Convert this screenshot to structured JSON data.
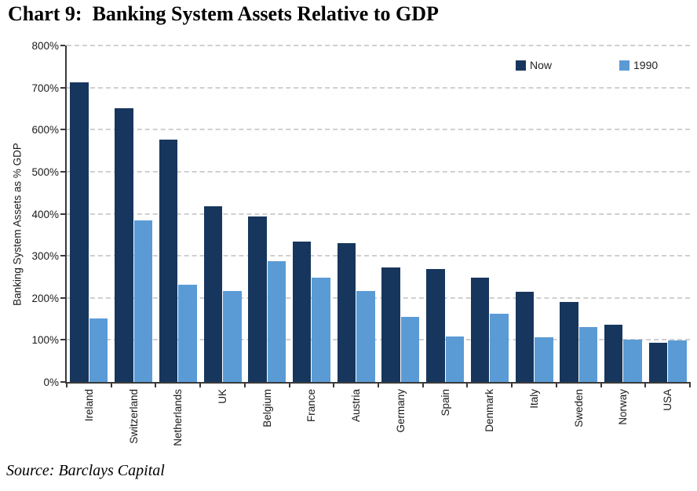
{
  "title": "Chart 9:  Banking System Assets Relative to GDP",
  "source_note": "Source: Barclays Capital",
  "colors": {
    "now_series": "#17365d",
    "series_1990": "#5b9bd5",
    "gridline": "#d0d0d0",
    "axis": "#3a3a3a",
    "text": "#1a1a1a"
  },
  "chart_data": {
    "type": "bar",
    "title": "Chart 9:  Banking System Assets Relative to GDP",
    "xlabel": "",
    "ylabel": "Banking System Assets as % GDP",
    "ylim": [
      0,
      800
    ],
    "ytick_step": 100,
    "ytick_labels": [
      "0%",
      "100%",
      "200%",
      "300%",
      "400%",
      "500%",
      "600%",
      "700%",
      "800%"
    ],
    "grid": "dashed horizontal",
    "legend_position": "top-right-inside",
    "categories": [
      "Ireland",
      "Switzerland",
      "Netherlands",
      "UK",
      "Belgium",
      "France",
      "Austria",
      "Germany",
      "Spain",
      "Denmark",
      "Italy",
      "Sweden",
      "Norway",
      "USA"
    ],
    "series": [
      {
        "name": "Now",
        "color": "#17365d",
        "values": [
          712,
          650,
          577,
          417,
          394,
          333,
          331,
          272,
          269,
          248,
          215,
          191,
          137,
          93
        ]
      },
      {
        "name": "1990",
        "color": "#5b9bd5",
        "values": [
          152,
          385,
          231,
          217,
          287,
          248,
          217,
          154,
          108,
          162,
          107,
          130,
          100,
          99
        ]
      }
    ],
    "source": "Source: Barclays Capital"
  }
}
